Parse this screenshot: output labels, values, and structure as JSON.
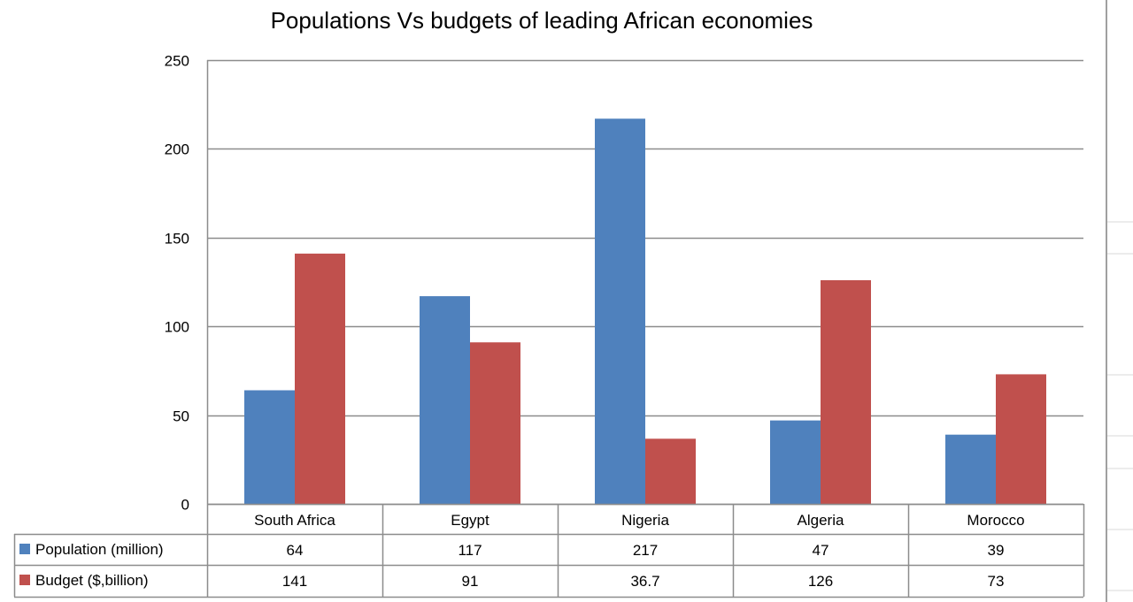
{
  "chart_data": {
    "type": "bar",
    "title": "Populations Vs budgets of leading African economies",
    "xlabel": "",
    "ylabel": "",
    "ylim": [
      0,
      250
    ],
    "yticks": [
      0,
      50,
      100,
      150,
      200,
      250
    ],
    "grid": true,
    "legend_placement": "data-table-bottom",
    "categories": [
      "South Africa",
      "Egypt",
      "Nigeria",
      "Algeria",
      "Morocco"
    ],
    "series": [
      {
        "name": "Population (million)",
        "color": "#4F81BD",
        "values": [
          64,
          117,
          217,
          47,
          39
        ],
        "labels": [
          "64",
          "117",
          "217",
          "47",
          "39"
        ]
      },
      {
        "name": "Budget ($,billion)",
        "color": "#C0504D",
        "values": [
          141,
          91,
          36.7,
          126,
          73
        ],
        "labels": [
          "141",
          "91",
          "36.7",
          "126",
          "73"
        ]
      }
    ]
  }
}
